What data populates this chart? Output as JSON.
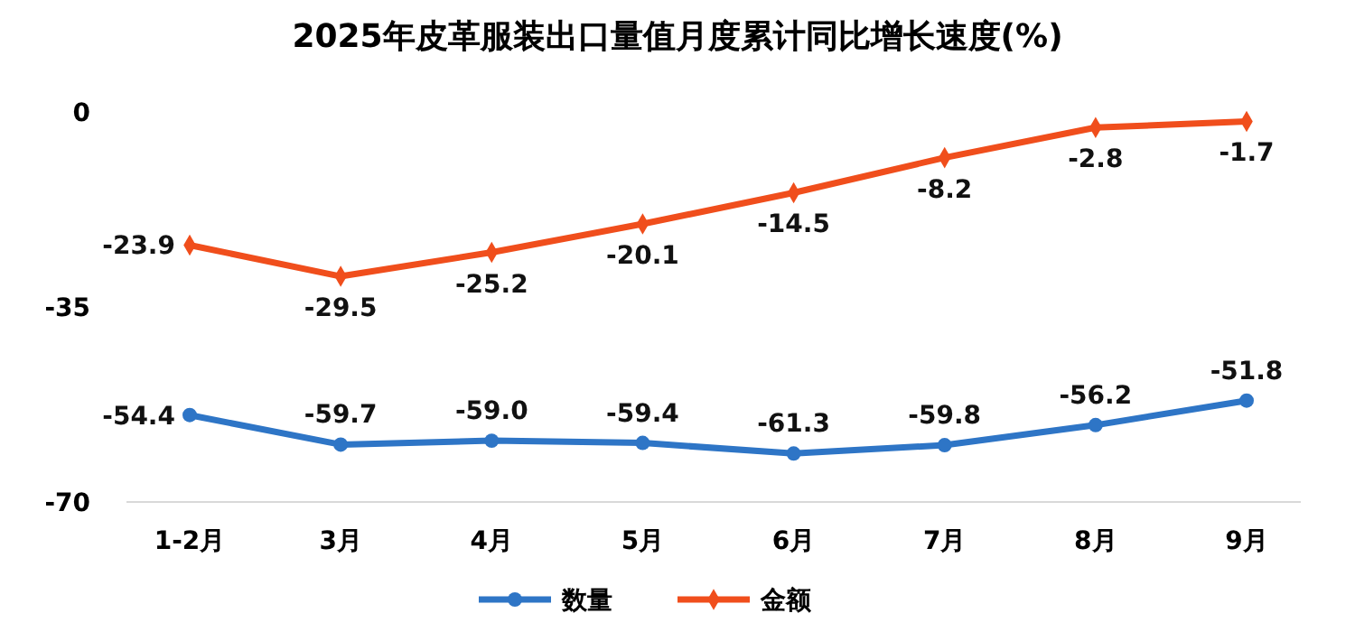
{
  "chart_data": {
    "type": "line",
    "title": "2025年皮革服装出口量值月度累计同比增长速度(%)",
    "categories": [
      "1-2月",
      "3月",
      "4月",
      "5月",
      "6月",
      "7月",
      "8月",
      "9月"
    ],
    "series": [
      {
        "name": "数量",
        "color": "#2e75c6",
        "marker": "circle",
        "values": [
          -54.4,
          -59.7,
          -59.0,
          -59.4,
          -61.3,
          -59.8,
          -56.2,
          -51.8
        ],
        "value_labels": [
          "-54.4",
          "-59.7",
          "-59.0",
          "-59.4",
          "-61.3",
          "-59.8",
          "-56.2",
          "-51.8"
        ]
      },
      {
        "name": "金额",
        "color": "#f04e1c",
        "marker": "diamond",
        "values": [
          -23.9,
          -29.5,
          -25.2,
          -20.1,
          -14.5,
          -8.2,
          -2.8,
          -1.7
        ],
        "value_labels": [
          "-23.9",
          "-29.5",
          "-25.2",
          "-20.1",
          "-14.5",
          "-8.2",
          "-2.8",
          "-1.7"
        ]
      }
    ],
    "ylim": [
      -70,
      0
    ],
    "yticks": [
      0,
      -35,
      -70
    ],
    "legend": "bottom",
    "grid": false
  }
}
